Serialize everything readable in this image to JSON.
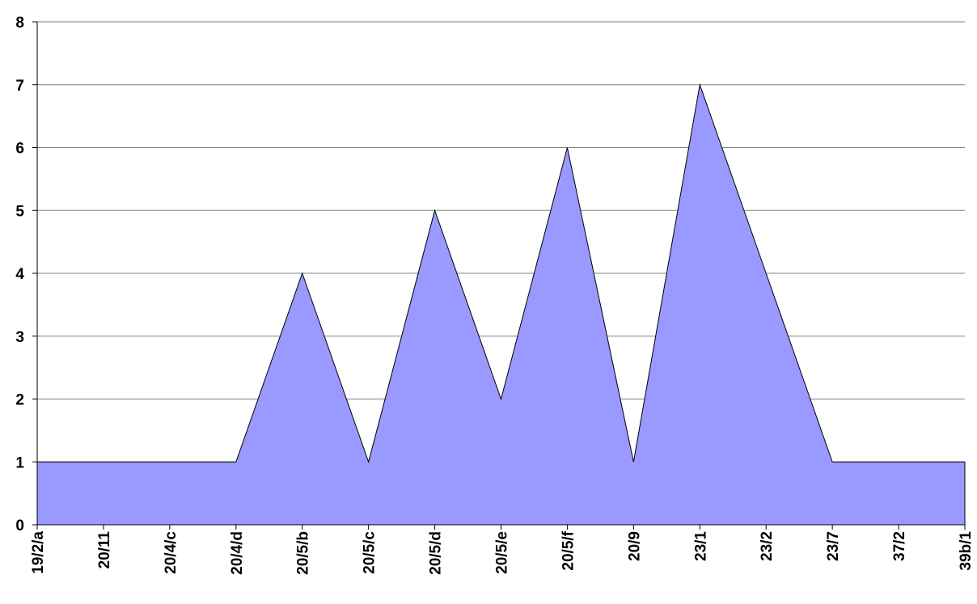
{
  "chart_data": {
    "type": "area",
    "categories": [
      "19/2/a",
      "20/11",
      "20/4/c",
      "20/4/d",
      "20/5/b",
      "20/5/c",
      "20/5/d",
      "20/5/e",
      "20/5/f",
      "20/9",
      "23/1",
      "23/2",
      "23/7",
      "37/2",
      "39b/1"
    ],
    "series": [
      {
        "values": [
          1,
          1,
          1,
          1,
          4,
          1,
          5,
          2,
          6,
          1,
          7,
          4,
          1,
          1,
          1
        ]
      }
    ],
    "ylim": [
      0,
      8
    ],
    "yticks": [
      0,
      1,
      2,
      3,
      4,
      5,
      6,
      7,
      8
    ],
    "grid": true,
    "legend": "none",
    "title": "",
    "xlabel": "",
    "ylabel": "",
    "colors": {
      "fill": "#9999ff",
      "line": "#000000",
      "grid": "#808080"
    }
  }
}
